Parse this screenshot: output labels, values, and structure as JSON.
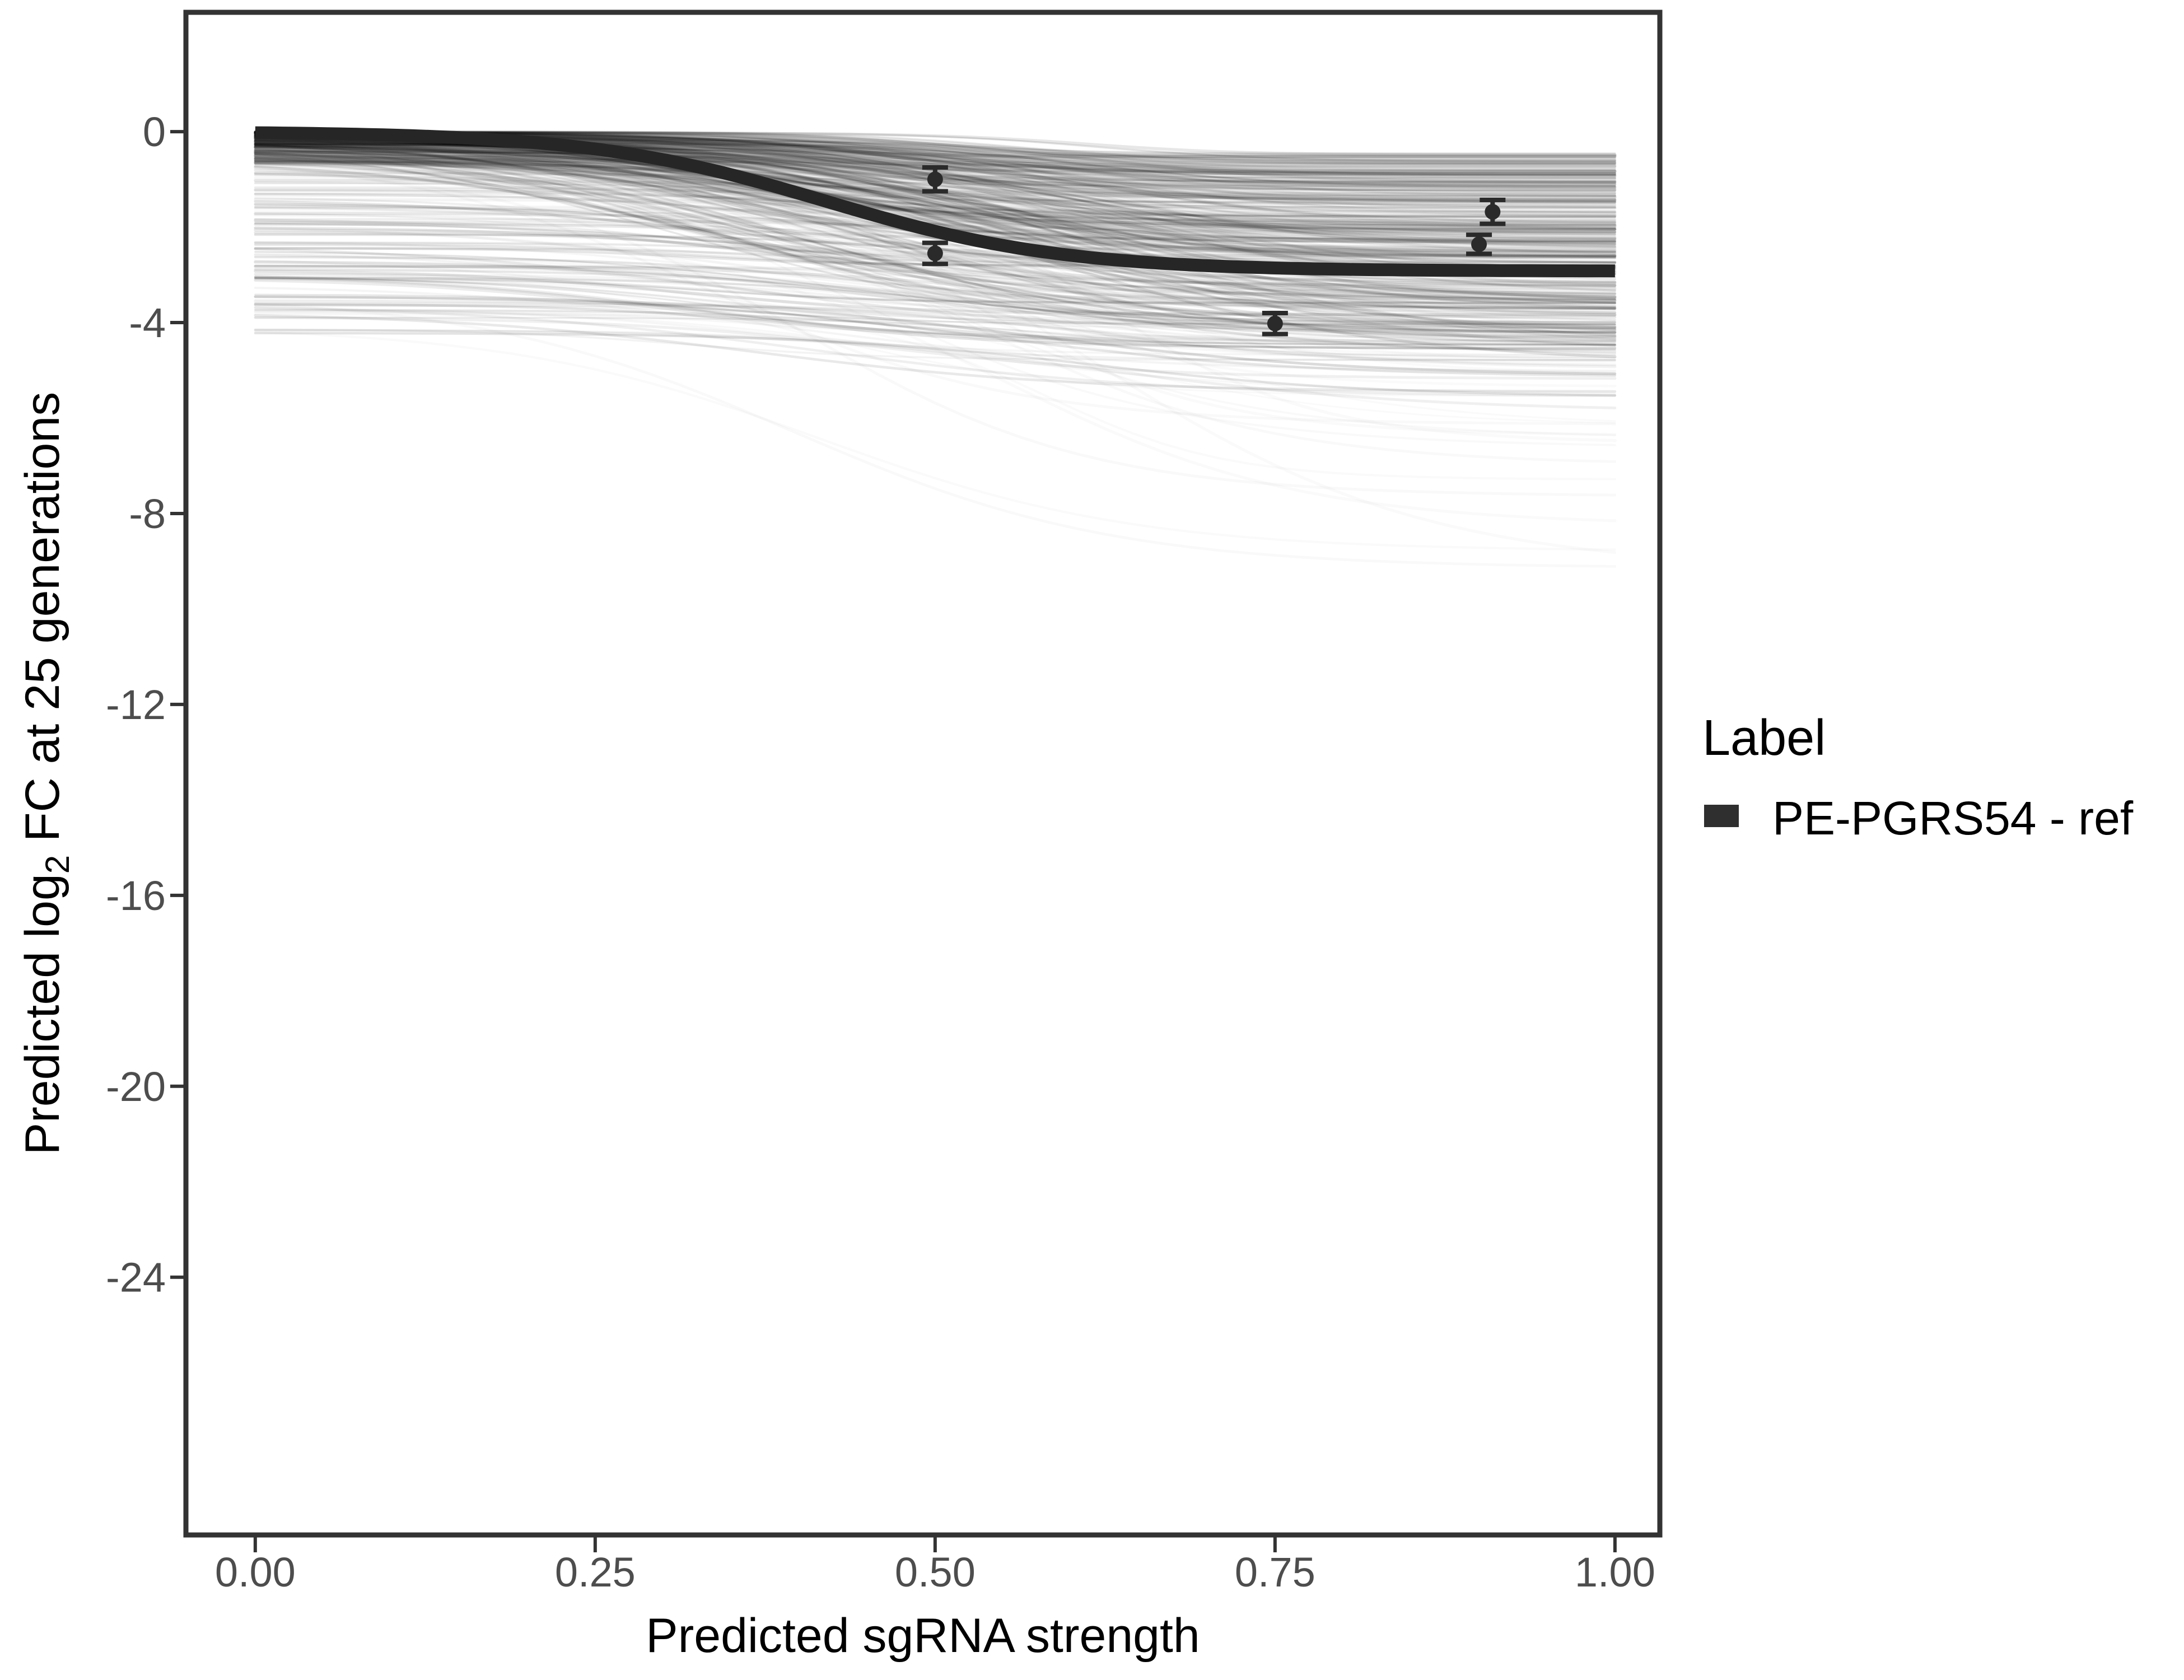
{
  "chart_data": {
    "type": "line",
    "title": "",
    "xlabel": "Predicted sgRNA strength",
    "ylabel": "Predicted log2 FC at 25 generations",
    "ylabel_parts": {
      "pre": "Predicted log",
      "sub": "2",
      "post": " FC at 25 generations"
    },
    "x_ticks": [
      0.0,
      0.25,
      0.5,
      0.75,
      1.0
    ],
    "x_tick_labels": [
      "0.00",
      "0.25",
      "0.50",
      "0.75",
      "1.00"
    ],
    "y_ticks": [
      0,
      -4,
      -8,
      -12,
      -16,
      -20,
      -24
    ],
    "y_tick_labels": [
      "0",
      "-4",
      "-8",
      "-12",
      "-16",
      "-20",
      "-24"
    ],
    "x_domain": [
      -0.051,
      1.033
    ],
    "y_domain": [
      2.5,
      -29.4
    ],
    "grid": false,
    "legend": {
      "title": "Label",
      "position": "right",
      "entries": [
        {
          "label": "PE-PGRS54 - ref",
          "color": "#2f2f2f",
          "key": "thick-line-swatch"
        }
      ]
    },
    "fit_curve": {
      "name": "PE-PGRS54 - ref",
      "model": "sigmoid",
      "y_start": 0.0,
      "asymptote": -2.92,
      "midpoint": 0.42,
      "scale": 0.087
    },
    "posterior_samples": {
      "count": 450,
      "seed": 20240613,
      "description": "light gray posterior sigmoid sample curves from x=0 to x=1",
      "start_value_range": [
        0,
        -4.3
      ],
      "end_value_range": [
        -0.4,
        -9.4
      ],
      "midpoint_range": [
        0.3,
        0.63
      ],
      "scale_range": [
        0.055,
        0.13
      ],
      "alpha_range": [
        0.02,
        0.11
      ]
    },
    "points": [
      {
        "x": 0.5,
        "y": -1.0,
        "err": 0.25
      },
      {
        "x": 0.5,
        "y": -2.55,
        "err": 0.22
      },
      {
        "x": 0.75,
        "y": -4.02,
        "err": 0.22
      },
      {
        "x": 0.91,
        "y": -1.68,
        "err": 0.25
      },
      {
        "x": 0.9,
        "y": -2.36,
        "err": 0.2
      }
    ],
    "colors": {
      "background": "#ffffff",
      "panel_border": "#333333",
      "tick_mark": "#333333",
      "tick_text": "#4d4d4d",
      "title_text": "#000000",
      "fit_curve": "#262626",
      "point": "#2a2a2a",
      "sample_line": "#000000"
    }
  }
}
